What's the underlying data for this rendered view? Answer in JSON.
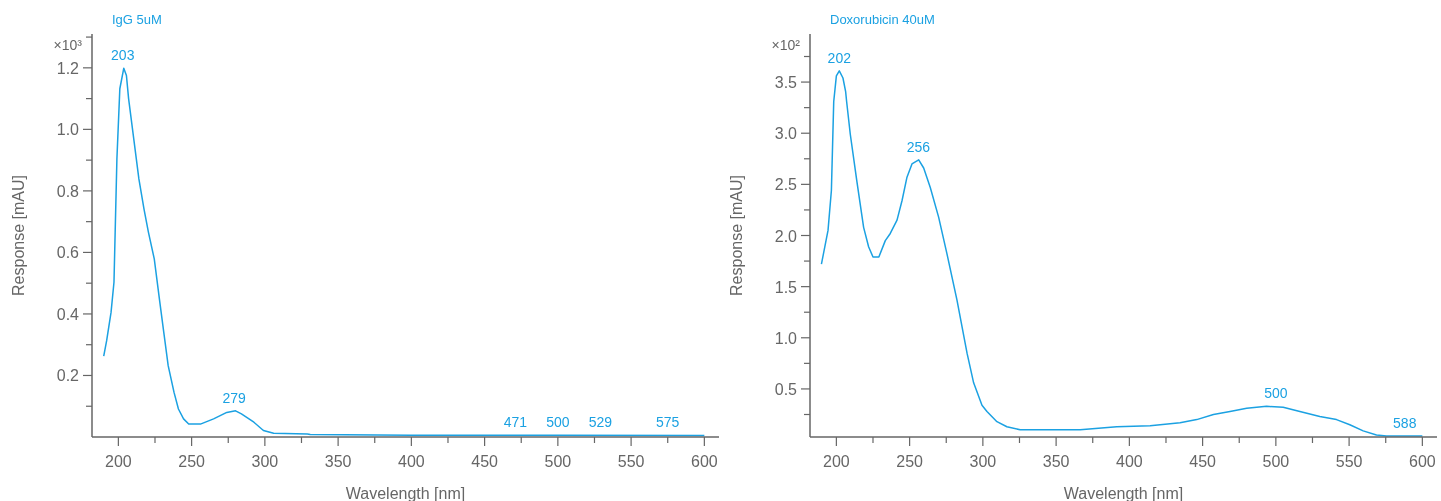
{
  "chart_data": [
    {
      "type": "line",
      "title": "IgG 5uM",
      "xlabel": "Wavelength [nm]",
      "ylabel": "Response [mAU]",
      "xlim": [
        182,
        610
      ],
      "ylim": [
        0,
        1.31
      ],
      "xticks": [
        200,
        {
          "value": 225,
          "label": null
        },
        250,
        {
          "value": 275,
          "label": null
        },
        300,
        {
          "value": 325,
          "label": null
        },
        350,
        {
          "value": 375,
          "label": null
        },
        400,
        {
          "value": 425,
          "label": null
        },
        450,
        {
          "value": 475,
          "label": null
        },
        500,
        {
          "value": 525,
          "label": null
        },
        550,
        {
          "value": 575,
          "label": null
        },
        600
      ],
      "yticks": [
        {
          "value": 0.1,
          "label": null
        },
        0.2,
        {
          "value": 0.3,
          "label": null
        },
        0.4,
        {
          "value": 0.5,
          "label": null
        },
        0.6,
        {
          "value": 0.7,
          "label": null
        },
        0.8,
        {
          "value": 0.9,
          "label": null
        },
        {
          "value": 1,
          "label": "1.0"
        },
        {
          "value": 1.1,
          "label": null
        },
        1.2,
        {
          "value": 1.3,
          "label": null
        }
      ],
      "grid": false,
      "marker": "none",
      "line_style": "solid",
      "series": [
        {
          "color": "#1ba1e2",
          "x": [
            190,
            192,
            195,
            197,
            199,
            201,
            203.7,
            205.5,
            207,
            210.5,
            214,
            217.5,
            220.5,
            224.5,
            228,
            231,
            234,
            238,
            241,
            244.5,
            248,
            256,
            265,
            274,
            280,
            284,
            292.5,
            299,
            306,
            329,
            331,
            400,
            500,
            600
          ],
          "values": [
            0.263,
            0.313,
            0.405,
            0.503,
            0.904,
            1.132,
            1.199,
            1.175,
            1.099,
            0.969,
            0.839,
            0.741,
            0.666,
            0.579,
            0.449,
            0.34,
            0.232,
            0.145,
            0.091,
            0.059,
            0.042,
            0.042,
            0.059,
            0.08,
            0.085,
            0.075,
            0.048,
            0.021,
            0.012,
            0.01,
            0.008,
            0.006,
            0.006,
            0.005
          ]
        }
      ],
      "annotations": [
        "×10³",
        {
          "text": "203",
          "x": 203,
          "y": 1.199
        },
        {
          "text": "279",
          "x": 279,
          "y": 0.085
        },
        {
          "text": "471",
          "x": 471,
          "y": 0.006
        },
        {
          "text": "500",
          "x": 500,
          "y": 0.006
        },
        {
          "text": "529",
          "x": 529,
          "y": 0.006
        },
        {
          "text": "575",
          "x": 575,
          "y": 0.006
        }
      ]
    },
    {
      "type": "line",
      "title": "Doxorubicin 40uM",
      "xlabel": "Wavelength [nm]",
      "ylabel": "Response [mAU]",
      "xlim": [
        182,
        610
      ],
      "ylim": [
        0.03,
        3.97
      ],
      "xticks": [
        200,
        {
          "value": 225,
          "label": null
        },
        250,
        {
          "value": 275,
          "label": null
        },
        300,
        {
          "value": 325,
          "label": null
        },
        350,
        {
          "value": 375,
          "label": null
        },
        400,
        {
          "value": 425,
          "label": null
        },
        450,
        {
          "value": 475,
          "label": null
        },
        500,
        {
          "value": 525,
          "label": null
        },
        550,
        {
          "value": 575,
          "label": null
        },
        600
      ],
      "yticks": [
        {
          "value": 0.25,
          "label": null
        },
        0.5,
        {
          "value": 0.75,
          "label": null
        },
        {
          "value": 1,
          "label": "1.0"
        },
        {
          "value": 1.25,
          "label": null
        },
        1.5,
        {
          "value": 1.75,
          "label": null
        },
        {
          "value": 2,
          "label": "2.0"
        },
        {
          "value": 2.25,
          "label": null
        },
        2.5,
        {
          "value": 2.75,
          "label": null
        },
        {
          "value": 3,
          "label": "3.0"
        },
        {
          "value": 3.25,
          "label": null
        },
        3.5,
        {
          "value": 3.75,
          "label": null
        }
      ],
      "grid": false,
      "marker": "none",
      "line_style": "solid",
      "series": [
        {
          "color": "#1ba1e2",
          "x": [
            189.8,
            194.3,
            196.6,
            198.2,
            200,
            202,
            204.5,
            206.3,
            207,
            209.5,
            214,
            218.6,
            222,
            225,
            229,
            233.4,
            236.8,
            241.4,
            244.8,
            248.2,
            251.6,
            256.2,
            259.6,
            264.1,
            269.8,
            275.5,
            282.3,
            289.2,
            293.7,
            299.4,
            302.8,
            309.6,
            316.4,
            325.5,
            350,
            366.4,
            391.4,
            414.2,
            434.6,
            446,
            457.4,
            468.7,
            480.1,
            493.7,
            505,
            516.4,
            530,
            541.4,
            550.5,
            559.6,
            568.7,
            575.5,
            600
          ],
          "values": [
            1.72,
            2.05,
            2.44,
            3.31,
            3.56,
            3.61,
            3.54,
            3.41,
            3.31,
            2.99,
            2.53,
            2.08,
            1.89,
            1.79,
            1.79,
            1.95,
            2.02,
            2.15,
            2.34,
            2.57,
            2.7,
            2.74,
            2.66,
            2.47,
            2.18,
            1.82,
            1.37,
            0.85,
            0.56,
            0.34,
            0.28,
            0.18,
            0.13,
            0.1,
            0.1,
            0.1,
            0.13,
            0.14,
            0.17,
            0.2,
            0.25,
            0.28,
            0.31,
            0.33,
            0.32,
            0.28,
            0.23,
            0.2,
            0.15,
            0.09,
            0.05,
            0.04,
            0.04
          ]
        }
      ],
      "annotations": [
        "×10²",
        {
          "text": "202",
          "x": 202,
          "y": 3.61
        },
        {
          "text": "256",
          "x": 256,
          "y": 2.74
        },
        {
          "text": "500",
          "x": 500,
          "y": 0.33
        },
        {
          "text": "588",
          "x": 588,
          "y": 0.04
        }
      ]
    }
  ]
}
